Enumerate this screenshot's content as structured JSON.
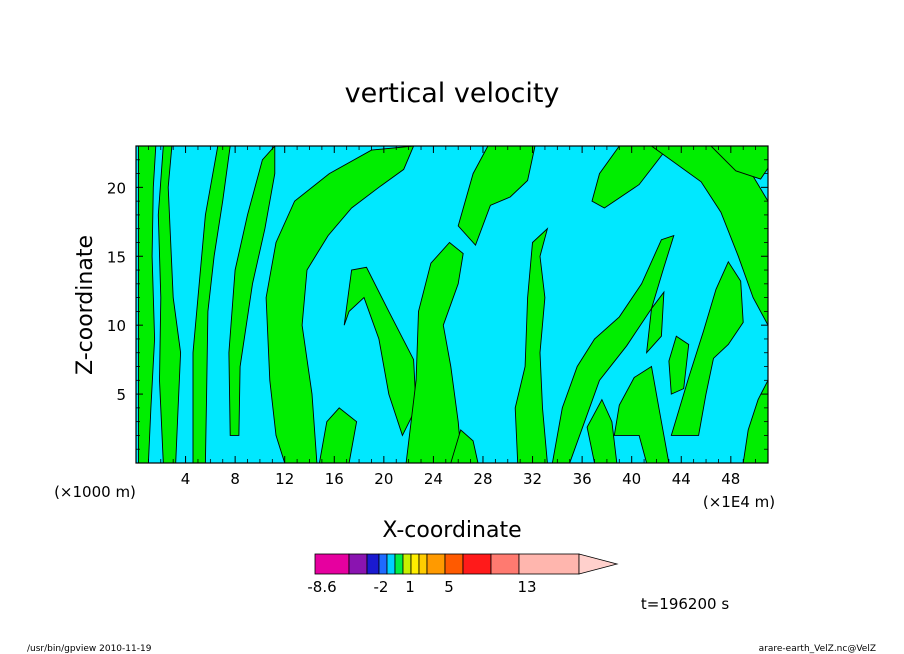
{
  "chart_data": {
    "type": "heatmap",
    "title": "vertical velocity",
    "xlabel": "X-coordinate",
    "ylabel": "Z-coordinate",
    "x_unit_left": "(×1000 m)",
    "x_unit_right": "(×1E4 m)",
    "xlim": [
      0,
      51
    ],
    "ylim": [
      0,
      23
    ],
    "x_ticks": [
      4,
      8,
      12,
      16,
      20,
      24,
      28,
      32,
      36,
      40,
      44,
      48
    ],
    "y_ticks": [
      5,
      10,
      15,
      20
    ],
    "fields": {
      "background_level_color": "#00e8ff",
      "upward_level_color": "#00ee00",
      "contour_color": "#000000"
    },
    "green_regions": [
      [
        [
          0.2,
          0
        ],
        [
          1.0,
          0
        ],
        [
          1.2,
          4
        ],
        [
          1.5,
          9
        ],
        [
          1.3,
          15
        ],
        [
          1.4,
          20
        ],
        [
          1.6,
          23
        ],
        [
          0.2,
          23
        ]
      ],
      [
        [
          2.2,
          0
        ],
        [
          3.2,
          0
        ],
        [
          3.4,
          4
        ],
        [
          3.6,
          8
        ],
        [
          3.0,
          12
        ],
        [
          2.8,
          16
        ],
        [
          2.6,
          20
        ],
        [
          2.9,
          23
        ],
        [
          2.2,
          23
        ],
        [
          1.8,
          18
        ],
        [
          2.0,
          12
        ],
        [
          1.9,
          6
        ]
      ],
      [
        [
          4.6,
          0
        ],
        [
          5.6,
          0
        ],
        [
          5.7,
          5
        ],
        [
          5.8,
          11
        ],
        [
          6.3,
          15
        ],
        [
          7.0,
          19
        ],
        [
          7.6,
          23
        ],
        [
          6.6,
          23
        ],
        [
          5.6,
          18
        ],
        [
          5.1,
          13
        ],
        [
          4.6,
          8
        ]
      ],
      [
        [
          7.6,
          2
        ],
        [
          8.3,
          2
        ],
        [
          8.4,
          7
        ],
        [
          9.4,
          13
        ],
        [
          10.4,
          17
        ],
        [
          11.2,
          21
        ],
        [
          11.2,
          23
        ],
        [
          10.2,
          22
        ],
        [
          9.0,
          18
        ],
        [
          8.0,
          14
        ],
        [
          7.5,
          8
        ]
      ],
      [
        [
          12.0,
          0
        ],
        [
          14.6,
          0
        ],
        [
          14.2,
          5
        ],
        [
          13.4,
          10
        ],
        [
          13.8,
          14
        ],
        [
          15.5,
          16.5
        ],
        [
          17.4,
          18.5
        ],
        [
          19.6,
          20
        ],
        [
          21.6,
          21.3
        ],
        [
          22.4,
          23
        ],
        [
          19.0,
          22.7
        ],
        [
          15.6,
          21
        ],
        [
          12.8,
          19
        ],
        [
          11.3,
          16
        ],
        [
          10.5,
          12
        ],
        [
          10.8,
          6
        ],
        [
          11.3,
          2
        ]
      ],
      [
        [
          14.8,
          0
        ],
        [
          17.2,
          0
        ],
        [
          17.8,
          3
        ],
        [
          16.4,
          4
        ],
        [
          15.4,
          3
        ]
      ],
      [
        [
          16.8,
          10
        ],
        [
          17.4,
          14
        ],
        [
          18.6,
          14.2
        ],
        [
          20.4,
          11
        ],
        [
          22.4,
          7.5
        ],
        [
          22.6,
          4
        ],
        [
          21.5,
          2
        ],
        [
          20.4,
          5
        ],
        [
          19.6,
          9
        ],
        [
          18.4,
          12
        ],
        [
          17.2,
          11
        ]
      ],
      [
        [
          21.8,
          0
        ],
        [
          26.3,
          0
        ],
        [
          26.0,
          3
        ],
        [
          25.4,
          7
        ],
        [
          24.8,
          10
        ],
        [
          26.0,
          13
        ],
        [
          26.4,
          15.2
        ],
        [
          25.3,
          16
        ],
        [
          23.8,
          14.5
        ],
        [
          22.8,
          11
        ],
        [
          22.6,
          6
        ]
      ],
      [
        [
          25.4,
          0
        ],
        [
          27.6,
          0
        ],
        [
          27.2,
          1.6
        ],
        [
          26.2,
          2.4
        ]
      ],
      [
        [
          26.0,
          17.2
        ],
        [
          27.2,
          21
        ],
        [
          28.4,
          23
        ],
        [
          32.2,
          23
        ],
        [
          31.6,
          20.5
        ],
        [
          30.2,
          19.3
        ],
        [
          28.6,
          18.7
        ],
        [
          27.4,
          15.8
        ]
      ],
      [
        [
          30.8,
          0
        ],
        [
          33.2,
          0
        ],
        [
          32.8,
          4
        ],
        [
          32.6,
          8
        ],
        [
          33.0,
          12
        ],
        [
          32.6,
          15
        ],
        [
          33.2,
          17
        ],
        [
          32.0,
          16
        ],
        [
          31.6,
          12
        ],
        [
          31.4,
          7
        ],
        [
          30.6,
          4
        ]
      ],
      [
        [
          33.6,
          0
        ],
        [
          35.0,
          0
        ],
        [
          36.2,
          3
        ],
        [
          37.4,
          6
        ],
        [
          39.6,
          8.5
        ],
        [
          41.6,
          11.2
        ],
        [
          42.6,
          14.2
        ],
        [
          43.4,
          16.5
        ],
        [
          42.4,
          16.2
        ],
        [
          40.8,
          13
        ],
        [
          39.0,
          10.6
        ],
        [
          37.0,
          9
        ],
        [
          35.6,
          7
        ],
        [
          34.4,
          4
        ]
      ],
      [
        [
          37.0,
          0
        ],
        [
          38.8,
          0
        ],
        [
          38.4,
          3
        ],
        [
          37.6,
          4.6
        ],
        [
          36.4,
          2.6
        ]
      ],
      [
        [
          38.6,
          2
        ],
        [
          40.6,
          2
        ],
        [
          41.2,
          0
        ],
        [
          43.0,
          0
        ],
        [
          42.2,
          4
        ],
        [
          41.6,
          7
        ],
        [
          40.2,
          6.2
        ],
        [
          39.0,
          4.2
        ]
      ],
      [
        [
          41.2,
          8
        ],
        [
          42.4,
          9.2
        ],
        [
          42.6,
          12.4
        ],
        [
          41.6,
          11.2
        ]
      ],
      [
        [
          39.0,
          23
        ],
        [
          37.4,
          21
        ],
        [
          36.8,
          19
        ],
        [
          37.8,
          18.5
        ],
        [
          40.6,
          20.2
        ],
        [
          43.0,
          23
        ]
      ],
      [
        [
          41.6,
          23
        ],
        [
          45.6,
          20.4
        ],
        [
          47.2,
          18.2
        ],
        [
          48.6,
          15
        ],
        [
          49.8,
          12
        ],
        [
          51,
          10
        ],
        [
          51,
          19
        ],
        [
          49.8,
          20.8
        ],
        [
          48.0,
          23
        ]
      ],
      [
        [
          43.2,
          2
        ],
        [
          45.4,
          2
        ],
        [
          46.0,
          5
        ],
        [
          46.6,
          7.6
        ],
        [
          47.8,
          8.6
        ],
        [
          49.0,
          10.2
        ],
        [
          48.8,
          13.2
        ],
        [
          47.8,
          14.6
        ],
        [
          46.8,
          12.6
        ],
        [
          45.8,
          9.6
        ],
        [
          44.6,
          6.2
        ]
      ],
      [
        [
          49.0,
          0
        ],
        [
          51,
          0
        ],
        [
          51,
          6
        ],
        [
          50.2,
          4.6
        ],
        [
          49.4,
          2.4
        ]
      ],
      [
        [
          46.4,
          23
        ],
        [
          48.4,
          21.2
        ],
        [
          50.4,
          20.6
        ],
        [
          51,
          21.4
        ],
        [
          51,
          23
        ]
      ],
      [
        [
          43.2,
          5
        ],
        [
          44.2,
          5.4
        ],
        [
          44.6,
          8.6
        ],
        [
          43.6,
          9.2
        ],
        [
          43.0,
          7.4
        ]
      ]
    ],
    "colorbar": {
      "colors": [
        "#e6009f",
        "#8a14b0",
        "#1a1ad0",
        "#1f6bff",
        "#00d0ff",
        "#00ee44",
        "#c8f000",
        "#ffee00",
        "#ffcc00",
        "#ff9a00",
        "#ff5a00",
        "#ff1a1a",
        "#ff7a70",
        "#ffb6ae",
        "#ffd0cc"
      ],
      "labels": [
        "-8.6",
        "-2",
        "1",
        "5",
        "13"
      ]
    },
    "time_label": "t=196200 s",
    "footer_left": "/usr/bin/gpview   2010-11-19",
    "footer_right": "arare-earth_VelZ.nc@VelZ"
  }
}
